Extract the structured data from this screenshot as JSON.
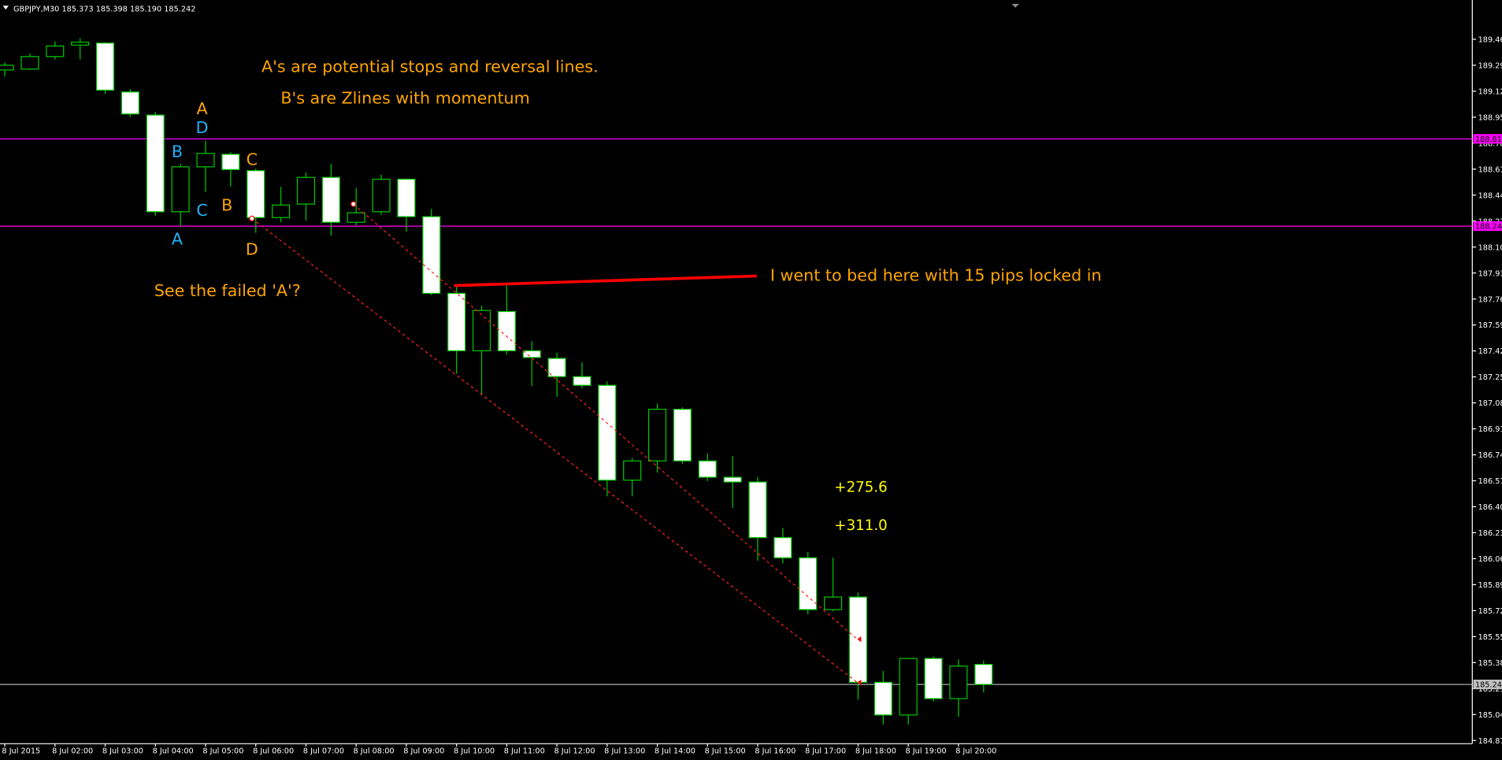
{
  "chart_data": {
    "type": "candlestick",
    "header": "GBPJPY,M30  185.373 185.398 185.190 185.242",
    "categories": [
      "8 Jul 2015",
      null,
      "8 Jul 02:00",
      null,
      "8 Jul 03:00",
      null,
      "8 Jul 04:00",
      null,
      "8 Jul 05:00",
      null,
      "8 Jul 06:00",
      null,
      "8 Jul 07:00",
      null,
      "8 Jul 08:00",
      null,
      "8 Jul 09:00",
      null,
      "8 Jul 10:00",
      null,
      "8 Jul 11:00",
      null,
      "8 Jul 12:00",
      null,
      "8 Jul 13:00",
      null,
      "8 Jul 14:00",
      null,
      "8 Jul 15:00",
      null,
      "8 Jul 16:00",
      null,
      "8 Jul 17:00",
      null,
      "8 Jul 18:00",
      null,
      "8 Jul 19:00",
      null,
      "8 Jul 20:00",
      null
    ],
    "open": [
      189.264,
      189.27,
      189.352,
      189.427,
      189.44,
      189.12,
      188.969,
      188.336,
      188.63,
      188.712,
      188.605,
      188.298,
      188.386,
      188.561,
      188.267,
      188.336,
      188.549,
      188.304,
      187.802,
      187.426,
      187.683,
      187.426,
      187.376,
      187.257,
      187.2,
      186.579,
      186.705,
      187.043,
      186.705,
      186.598,
      186.567,
      186.203,
      186.071,
      185.732,
      185.814,
      185.256,
      185.042,
      185.412,
      185.149,
      185.373
    ],
    "high": [
      189.314,
      189.371,
      189.452,
      189.471,
      189.446,
      189.139,
      188.988,
      188.649,
      188.8,
      188.725,
      188.618,
      188.499,
      188.593,
      188.649,
      188.492,
      188.58,
      188.555,
      188.355,
      187.853,
      187.721,
      187.853,
      187.489,
      187.414,
      187.351,
      187.225,
      186.724,
      187.081,
      187.056,
      186.755,
      186.736,
      186.598,
      186.266,
      186.109,
      186.071,
      185.845,
      185.331,
      185.412,
      185.425,
      185.406,
      185.398
    ],
    "low": [
      189.22,
      189.264,
      189.333,
      189.333,
      189.107,
      188.957,
      188.311,
      188.242,
      188.467,
      188.499,
      188.198,
      188.267,
      188.279,
      188.179,
      188.248,
      188.317,
      188.204,
      187.79,
      187.276,
      187.138,
      187.401,
      187.194,
      187.125,
      187.181,
      186.473,
      186.473,
      186.629,
      186.686,
      186.573,
      186.397,
      186.052,
      186.034,
      185.701,
      185.72,
      185.143,
      184.98,
      184.98,
      185.13,
      185.03,
      185.19
    ],
    "close": [
      189.295,
      189.352,
      189.421,
      189.446,
      189.132,
      188.976,
      188.336,
      188.63,
      188.718,
      188.612,
      188.298,
      188.38,
      188.561,
      188.267,
      188.329,
      188.549,
      188.304,
      187.802,
      187.426,
      187.69,
      187.426,
      187.382,
      187.257,
      187.2,
      186.579,
      186.705,
      187.043,
      186.705,
      186.598,
      186.567,
      186.203,
      186.071,
      185.732,
      185.814,
      185.256,
      185.042,
      185.412,
      185.149,
      185.362,
      185.242
    ],
    "up_color": "#00c800",
    "down_color": "#ffffff",
    "ylim": [
      184.854,
      189.722
    ],
    "yticks": [
      189.465,
      189.295,
      189.125,
      188.955,
      188.785,
      188.615,
      188.445,
      188.275,
      188.105,
      187.935,
      187.765,
      187.595,
      187.425,
      187.255,
      187.085,
      186.915,
      186.745,
      186.575,
      186.405,
      186.235,
      186.065,
      185.895,
      185.725,
      185.555,
      185.385,
      185.215,
      185.045,
      184.875
    ],
    "price_lines": [
      {
        "value": 188.813,
        "color": "#ff00ff"
      },
      {
        "value": 188.242,
        "color": "#ff00ff"
      },
      {
        "value": 185.242,
        "color": "#c0c0c0"
      }
    ],
    "annotations": [
      "A's are potential stops and reversal lines.",
      "B's are Zlines with momentum",
      "See the failed 'A'?",
      "I went to bed here with 15 pips locked in",
      "+275.6",
      "+311.0",
      "A",
      "D",
      "B",
      "C",
      "A",
      "B",
      "C",
      "D"
    ]
  }
}
